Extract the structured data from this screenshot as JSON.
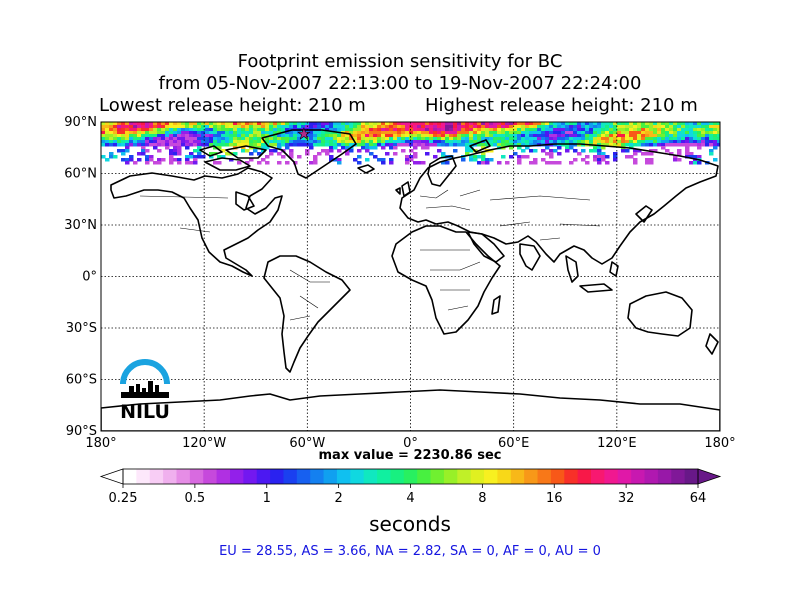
{
  "title": {
    "line1": "Footprint emission sensitivity for BC",
    "line2": "from 05-Nov-2007 22:13:00 to 19-Nov-2007 22:24:00",
    "lowest_release": "Lowest release height: 210 m",
    "highest_release": "Highest release height: 210 m"
  },
  "map": {
    "projection": "equirectangular",
    "lon_range": [
      -180,
      180
    ],
    "lat_range": [
      -90,
      90
    ],
    "lat_ticks": [
      {
        "value": 90,
        "label": "90°N"
      },
      {
        "value": 60,
        "label": "60°N"
      },
      {
        "value": 30,
        "label": "30°N"
      },
      {
        "value": 0,
        "label": "0°"
      },
      {
        "value": -30,
        "label": "30°S"
      },
      {
        "value": -60,
        "label": "60°S"
      },
      {
        "value": -90,
        "label": "90°S"
      }
    ],
    "lon_ticks": [
      {
        "value": -180,
        "label": "180°"
      },
      {
        "value": -120,
        "label": "120°W"
      },
      {
        "value": -60,
        "label": "60°W"
      },
      {
        "value": 0,
        "label": "0°"
      },
      {
        "value": 60,
        "label": "60°E"
      },
      {
        "value": 120,
        "label": "120°E"
      },
      {
        "value": 180,
        "label": "180°"
      }
    ],
    "gridlines": "dotted",
    "footprint_lat_band": [
      67,
      90
    ],
    "release_marker": {
      "lon": -62,
      "lat": 83,
      "color": "#b02a8a"
    },
    "logo_text": "NILU",
    "logo_color": "#1aa3e0"
  },
  "max_value_label": "max value = 2230.86 sec",
  "colorbar": {
    "unit_label": "seconds",
    "scale": "log2",
    "range": [
      0.25,
      64
    ],
    "ticks": [
      {
        "value": 0.25,
        "label": "0.25"
      },
      {
        "value": 0.5,
        "label": "0.5"
      },
      {
        "value": 1,
        "label": "1"
      },
      {
        "value": 2,
        "label": "2"
      },
      {
        "value": 4,
        "label": "4"
      },
      {
        "value": 8,
        "label": "8"
      },
      {
        "value": 16,
        "label": "16"
      },
      {
        "value": 32,
        "label": "32"
      },
      {
        "value": 64,
        "label": "64"
      }
    ],
    "colors": [
      "#ffffff",
      "#fde8fb",
      "#f8cdf5",
      "#f0b0ee",
      "#e68de6",
      "#d86ae0",
      "#c649dc",
      "#b030e2",
      "#9320ea",
      "#7318f0",
      "#4c18f2",
      "#2a22f0",
      "#1a40f0",
      "#1760f0",
      "#1480f0",
      "#10a0f0",
      "#10c0f0",
      "#10d8e0",
      "#10e8c0",
      "#10f0a0",
      "#18f080",
      "#28f060",
      "#48f040",
      "#70f030",
      "#98f028",
      "#c0f028",
      "#e0f020",
      "#f8f020",
      "#f8d818",
      "#f8b818",
      "#f89818",
      "#f87818",
      "#f85818",
      "#f83028",
      "#f81848",
      "#f81870",
      "#f01890",
      "#e018a8",
      "#c818b0",
      "#b018b0",
      "#9818a8",
      "#801898",
      "#681888"
    ],
    "extend_low_color": "#ffffff",
    "extend_high_color": "#681888"
  },
  "regions_text": "EU = 28.55,  AS = 3.66,  NA = 2.82,  SA = 0,  AF = 0,  AU = 0",
  "colors": {
    "text": "#000000",
    "regions": "#1515e0"
  }
}
